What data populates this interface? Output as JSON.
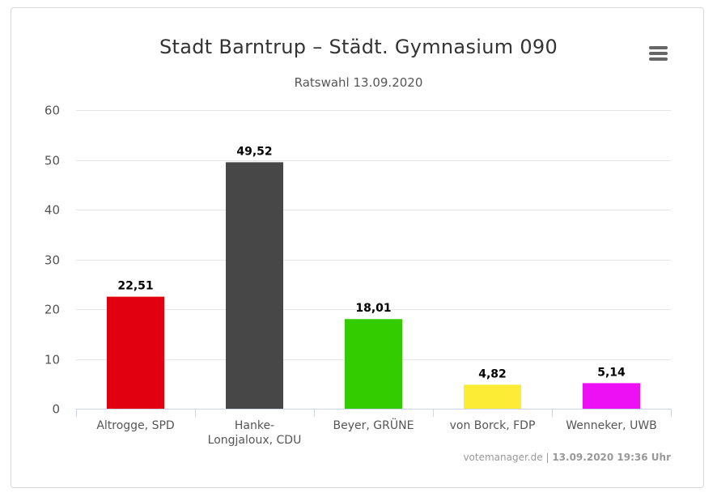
{
  "title": "Stadt Barntrup – Städt. Gymnasium 090",
  "subtitle": "Ratswahl 13.09.2020",
  "menu_icon": "hamburger-menu-icon",
  "credits": {
    "source": "votemanager.de",
    "separator": "|",
    "timestamp": "13.09.2020 19:36 Uhr"
  },
  "chart_data": {
    "type": "bar",
    "categories": [
      [
        "Altrogge, SPD"
      ],
      [
        "Hanke-",
        "Longjaloux, CDU"
      ],
      [
        "Beyer, GRÜNE"
      ],
      [
        "von Borck, FDP"
      ],
      [
        "Wenneker, UWB"
      ]
    ],
    "values": [
      22.51,
      49.52,
      18.01,
      4.82,
      5.14
    ],
    "value_labels": [
      "22,51",
      "49,52",
      "18,01",
      "4,82",
      "5,14"
    ],
    "colors": [
      "#e0000f",
      "#474747",
      "#33cc00",
      "#fcec35",
      "#ee10f4"
    ],
    "ylim": [
      0,
      60
    ],
    "yticks": [
      0,
      10,
      20,
      30,
      40,
      50,
      60
    ],
    "grid": true
  }
}
